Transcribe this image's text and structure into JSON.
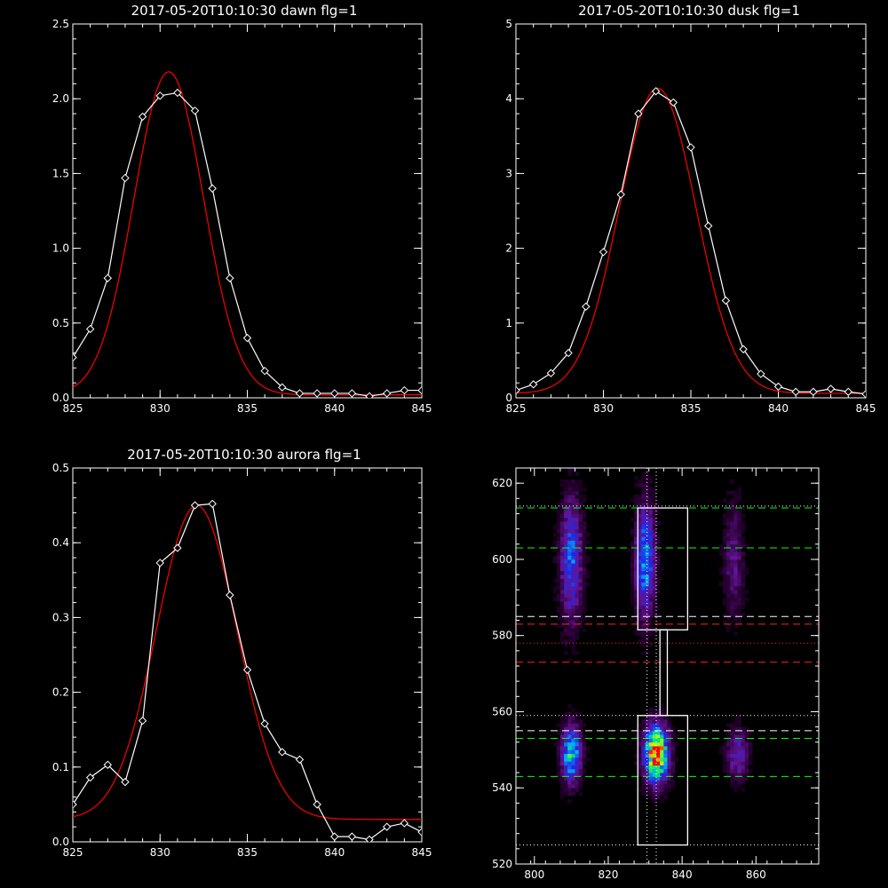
{
  "colors": {
    "background": "#000000",
    "axes": "#ffffff",
    "observed": "#ffffff",
    "fit": "#ff0000",
    "green_dash": "#00ff00",
    "red_dash": "#ff2020",
    "white_dash": "#ffffff"
  },
  "chart_data": [
    {
      "type": "line",
      "title": "2017-05-20T10:10:30 dawn flg=1",
      "xlim": [
        825,
        845
      ],
      "ylim": [
        0,
        2.5
      ],
      "xticks": [
        "825",
        "830",
        "835",
        "840",
        "845"
      ],
      "yticks": [
        "0.0",
        "0.5",
        "1.0",
        "1.5",
        "2.0",
        "2.5"
      ],
      "series": [
        {
          "role": "observed",
          "marker": "diamond",
          "x": [
            825,
            826,
            827,
            828,
            829,
            830,
            831,
            832,
            833,
            834,
            835,
            836,
            837,
            838,
            839,
            840,
            841,
            842,
            843,
            844,
            845
          ],
          "y": [
            0.27,
            0.46,
            0.8,
            1.47,
            1.88,
            2.02,
            2.04,
            1.92,
            1.4,
            0.8,
            0.4,
            0.18,
            0.07,
            0.03,
            0.03,
            0.03,
            0.03,
            0.01,
            0.03,
            0.05,
            0.05
          ]
        },
        {
          "role": "fit",
          "marker": "none",
          "model": "gaussian",
          "amplitude": 2.16,
          "center": 830.5,
          "sigma": 2.0,
          "baseline": 0.02
        }
      ]
    },
    {
      "type": "line",
      "title": "2017-05-20T10:10:30 dusk flg=1",
      "xlim": [
        825,
        845
      ],
      "ylim": [
        0,
        5
      ],
      "xticks": [
        "825",
        "830",
        "835",
        "840",
        "845"
      ],
      "yticks": [
        "0",
        "1",
        "2",
        "3",
        "4",
        "5"
      ],
      "series": [
        {
          "role": "observed",
          "marker": "diamond",
          "x": [
            825,
            826,
            827,
            828,
            829,
            830,
            831,
            832,
            833,
            834,
            835,
            836,
            837,
            838,
            839,
            840,
            841,
            842,
            843,
            844,
            845
          ],
          "y": [
            0.1,
            0.18,
            0.33,
            0.6,
            1.22,
            1.95,
            2.72,
            3.8,
            4.1,
            3.95,
            3.35,
            2.3,
            1.3,
            0.65,
            0.32,
            0.15,
            0.08,
            0.08,
            0.12,
            0.08,
            0.05
          ]
        },
        {
          "role": "fit",
          "marker": "none",
          "model": "gaussian",
          "amplitude": 4.08,
          "center": 833.1,
          "sigma": 2.2,
          "baseline": 0.06
        }
      ]
    },
    {
      "type": "line",
      "title": "2017-05-20T10:10:30 aurora flg=1",
      "xlim": [
        825,
        845
      ],
      "ylim": [
        0,
        0.5
      ],
      "xticks": [
        "825",
        "830",
        "835",
        "840",
        "845"
      ],
      "yticks": [
        "0.0",
        "0.1",
        "0.2",
        "0.3",
        "0.4",
        "0.5"
      ],
      "series": [
        {
          "role": "observed",
          "marker": "diamond",
          "x": [
            825,
            826,
            827,
            828,
            829,
            830,
            831,
            832,
            833,
            834,
            835,
            836,
            837,
            838,
            839,
            840,
            841,
            842,
            843,
            844,
            845
          ],
          "y": [
            0.05,
            0.086,
            0.103,
            0.08,
            0.162,
            0.373,
            0.393,
            0.45,
            0.452,
            0.33,
            0.23,
            0.158,
            0.12,
            0.11,
            0.05,
            0.007,
            0.007,
            0.003,
            0.02,
            0.025,
            0.013
          ]
        },
        {
          "role": "fit",
          "marker": "none",
          "model": "gaussian",
          "amplitude": 0.42,
          "center": 832.1,
          "sigma": 2.3,
          "baseline": 0.03
        }
      ]
    },
    {
      "type": "heatmap",
      "title": "",
      "xlim": [
        795,
        877
      ],
      "ylim": [
        520,
        624
      ],
      "xticks": [
        "800",
        "820",
        "840",
        "860"
      ],
      "yticks": [
        "520",
        "540",
        "560",
        "580",
        "600",
        "620"
      ],
      "colormap": "rainbow",
      "blobs": [
        {
          "x": 810,
          "y": 600,
          "sx": 2.0,
          "sy": 11,
          "amp": 0.42
        },
        {
          "x": 830,
          "y": 600,
          "sx": 1.8,
          "sy": 10,
          "amp": 0.5
        },
        {
          "x": 854,
          "y": 600,
          "sx": 1.8,
          "sy": 10,
          "amp": 0.2
        },
        {
          "x": 810,
          "y": 549,
          "sx": 1.8,
          "sy": 5,
          "amp": 0.62
        },
        {
          "x": 833,
          "y": 549,
          "sx": 2.2,
          "sy": 5,
          "amp": 1.0
        },
        {
          "x": 855,
          "y": 549,
          "sx": 2.0,
          "sy": 4.5,
          "amp": 0.3
        }
      ],
      "boxes": [
        {
          "x0": 828,
          "x1": 841.5,
          "y0": 581.5,
          "y1": 613.5
        },
        {
          "x0": 834,
          "x1": 836,
          "y0": 559,
          "y1": 581.5
        },
        {
          "x0": 828,
          "x1": 841.5,
          "y0": 525,
          "y1": 559
        }
      ],
      "hlines": [
        {
          "y": 613.5,
          "color": "green_dash",
          "style": "dash"
        },
        {
          "y": 603,
          "color": "green_dash",
          "style": "dash"
        },
        {
          "y": 585,
          "color": "white_dash",
          "style": "dash"
        },
        {
          "y": 583,
          "color": "red_dash",
          "style": "dash"
        },
        {
          "y": 573,
          "color": "red_dash",
          "style": "dash"
        },
        {
          "y": 555,
          "color": "white_dash",
          "style": "dash"
        },
        {
          "y": 553,
          "color": "green_dash",
          "style": "dash"
        },
        {
          "y": 543,
          "color": "green_dash",
          "style": "dash"
        },
        {
          "y": 614,
          "color": "white_dash",
          "style": "dot"
        },
        {
          "y": 578,
          "color": "red_dash",
          "style": "dot"
        },
        {
          "y": 559,
          "color": "white_dash",
          "style": "dot"
        },
        {
          "y": 525,
          "color": "white_dash",
          "style": "dot"
        }
      ],
      "vlines": [
        {
          "x": 830.5,
          "color": "white_dash",
          "style": "dot"
        },
        {
          "x": 833,
          "color": "white_dash",
          "style": "dot"
        }
      ]
    }
  ]
}
